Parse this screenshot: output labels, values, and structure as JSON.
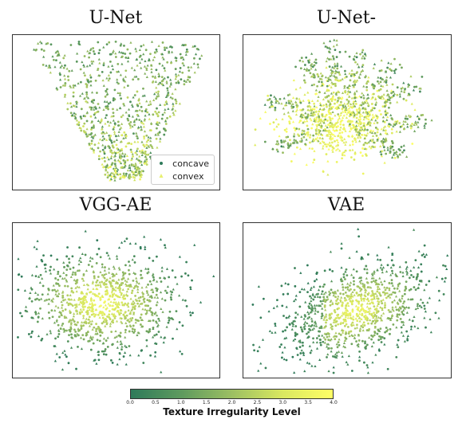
{
  "chart_data": [
    {
      "type": "scatter",
      "title": "U-Net",
      "legend": {
        "placement": "bottom-right",
        "entries": [
          "concave",
          "convex"
        ]
      },
      "series": [
        {
          "name": "concave",
          "marker": "circle"
        },
        {
          "name": "convex",
          "marker": "triangle"
        }
      ]
    },
    {
      "type": "scatter",
      "title": "U-Net-"
    },
    {
      "type": "scatter",
      "title": "VGG-AE"
    },
    {
      "type": "scatter",
      "title": "VAE"
    }
  ],
  "colorbar": {
    "label": "Texture Irregularity Level",
    "range": [
      0.0,
      4.0
    ],
    "ticks": [
      "0.0",
      "0.5",
      "1.0",
      "1.5",
      "2.0",
      "2.5",
      "3.0",
      "3.5",
      "4.0"
    ],
    "colors": [
      "#2e7a5a",
      "#5e9a5e",
      "#9cbf62",
      "#d9e860",
      "#ffff66"
    ]
  }
}
